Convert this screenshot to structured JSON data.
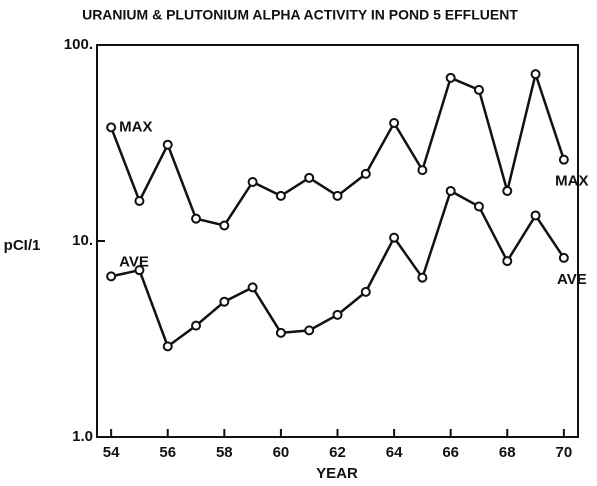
{
  "chart_data": {
    "type": "line",
    "title": "URANIUM & PLUTONIUM ALPHA ACTIVITY IN POND 5 EFFLUENT",
    "x_label": "YEAR",
    "y_label": "pCI/1",
    "x": [
      54,
      55,
      56,
      57,
      58,
      59,
      60,
      61,
      62,
      63,
      64,
      65,
      66,
      67,
      68,
      69,
      70
    ],
    "series": [
      {
        "name": "MAX",
        "color": "#111111",
        "values": [
          38,
          16,
          31,
          13,
          12,
          20,
          17,
          21,
          17,
          22,
          40,
          23,
          68,
          59,
          18,
          71,
          26
        ]
      },
      {
        "name": "AVE",
        "color": "#111111",
        "values": [
          6.6,
          7.1,
          2.9,
          3.7,
          4.9,
          5.8,
          3.4,
          3.5,
          4.2,
          5.5,
          10.4,
          6.5,
          18,
          15,
          7.9,
          13.5,
          8.2
        ]
      }
    ],
    "xlim": [
      53.5,
      70.5
    ],
    "xticks": [
      54,
      56,
      58,
      60,
      62,
      64,
      66,
      68,
      70
    ],
    "ylim": [
      1,
      100
    ],
    "yscale": "log",
    "yticks": [
      {
        "value": 1,
        "label": "1.0"
      },
      {
        "value": 10,
        "label": "10."
      },
      {
        "value": 100,
        "label": "100."
      }
    ],
    "grid": false
  }
}
